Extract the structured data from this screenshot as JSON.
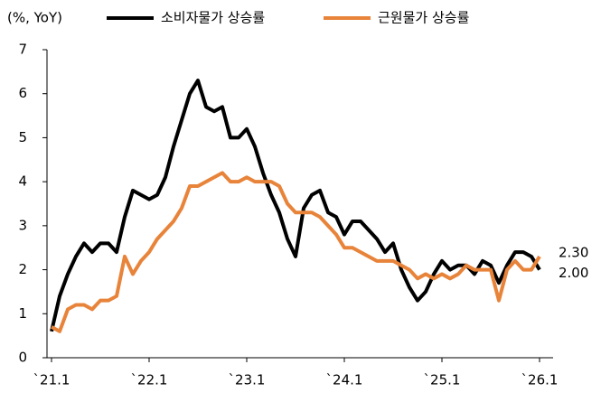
{
  "chart_data": {
    "type": "line",
    "y_label": "(%, YoY)",
    "categories": [
      "`21.1",
      null,
      null,
      null,
      null,
      null,
      null,
      null,
      null,
      null,
      null,
      null,
      "`22.1",
      null,
      null,
      null,
      null,
      null,
      null,
      null,
      null,
      null,
      null,
      null,
      "`23.1",
      null,
      null,
      null,
      null,
      null,
      null,
      null,
      null,
      null,
      null,
      null,
      "`24.1",
      null,
      null,
      null,
      null,
      null,
      null,
      null,
      null,
      null,
      null,
      null,
      "`25.1",
      null,
      null,
      null,
      null,
      null,
      null,
      null,
      null,
      null,
      null,
      null,
      "`26.1"
    ],
    "series": [
      {
        "name": "소비자물가 상승률",
        "color": "#000000",
        "values": [
          0.6,
          1.4,
          1.9,
          2.3,
          2.6,
          2.4,
          2.6,
          2.6,
          2.4,
          3.2,
          3.8,
          3.7,
          3.6,
          3.7,
          4.1,
          4.8,
          5.4,
          6.0,
          6.3,
          5.7,
          5.6,
          5.7,
          5.0,
          5.0,
          5.2,
          4.8,
          4.2,
          3.7,
          3.3,
          2.7,
          2.3,
          3.4,
          3.7,
          3.8,
          3.3,
          3.2,
          2.8,
          3.1,
          3.1,
          2.9,
          2.7,
          2.4,
          2.6,
          2.0,
          1.6,
          1.3,
          1.5,
          1.9,
          2.2,
          2.0,
          2.1,
          2.1,
          1.9,
          2.2,
          2.1,
          1.7,
          2.1,
          2.4,
          2.4,
          2.3,
          2.0
        ],
        "value_labels": [
          null,
          null,
          null,
          null,
          null,
          null,
          null,
          null,
          null,
          null,
          null,
          null,
          null,
          null,
          null,
          null,
          null,
          null,
          null,
          null,
          null,
          null,
          null,
          null,
          null,
          null,
          null,
          null,
          null,
          null,
          null,
          null,
          null,
          null,
          null,
          null,
          null,
          null,
          null,
          null,
          null,
          null,
          null,
          null,
          null,
          null,
          null,
          null,
          null,
          null,
          null,
          null,
          null,
          null,
          null,
          null,
          null,
          null,
          null,
          null,
          "2.00"
        ]
      },
      {
        "name": "근원물가 상승률",
        "color": "#e8833a",
        "values": [
          0.7,
          0.6,
          1.1,
          1.2,
          1.2,
          1.1,
          1.3,
          1.3,
          1.4,
          2.3,
          1.9,
          2.2,
          2.4,
          2.7,
          2.9,
          3.1,
          3.4,
          3.9,
          3.9,
          4.0,
          4.1,
          4.2,
          4.0,
          4.0,
          4.1,
          4.0,
          4.0,
          4.0,
          3.9,
          3.5,
          3.3,
          3.3,
          3.3,
          3.2,
          3.0,
          2.8,
          2.5,
          2.5,
          2.4,
          2.3,
          2.2,
          2.2,
          2.2,
          2.1,
          2.0,
          1.8,
          1.9,
          1.8,
          1.9,
          1.8,
          1.9,
          2.1,
          2.0,
          2.0,
          2.0,
          1.3,
          2.0,
          2.2,
          2.0,
          2.0,
          2.3
        ],
        "value_labels": [
          null,
          null,
          null,
          null,
          null,
          null,
          null,
          null,
          null,
          null,
          null,
          null,
          null,
          null,
          null,
          null,
          null,
          null,
          null,
          null,
          null,
          null,
          null,
          null,
          null,
          null,
          null,
          null,
          null,
          null,
          null,
          null,
          null,
          null,
          null,
          null,
          null,
          null,
          null,
          null,
          null,
          null,
          null,
          null,
          null,
          null,
          null,
          null,
          null,
          null,
          null,
          null,
          null,
          null,
          null,
          null,
          null,
          null,
          null,
          null,
          "2.30"
        ]
      }
    ],
    "ylim": [
      0,
      7
    ],
    "yticks": [
      0,
      1,
      2,
      3,
      4,
      5,
      6,
      7
    ]
  }
}
